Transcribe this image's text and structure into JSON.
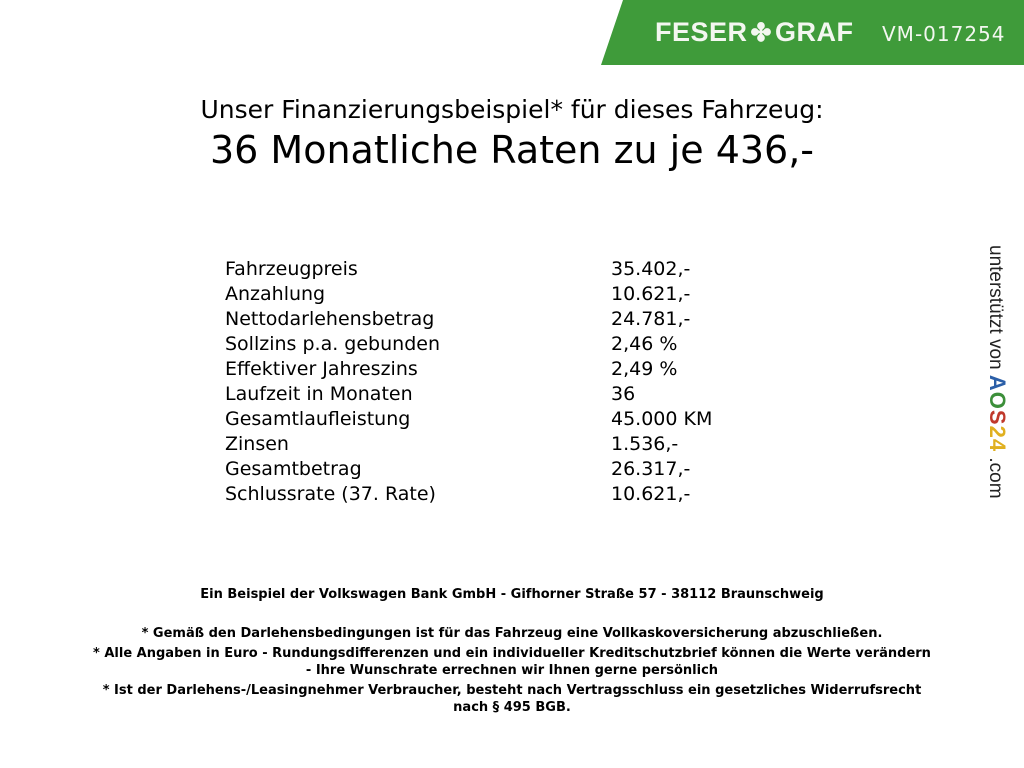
{
  "header": {
    "brand_left": "FESER",
    "brand_right": "GRAF",
    "vehicle_id": "VM-017254",
    "brand_color": "#3f9b3a"
  },
  "title": {
    "line1": "Unser Finanzierungsbeispiel* für dieses Fahrzeug:",
    "line2": "36 Monatliche Raten zu je 436,-"
  },
  "details": [
    {
      "label": "Fahrzeugpreis",
      "value": "35.402,-"
    },
    {
      "label": "Anzahlung",
      "value": "10.621,-"
    },
    {
      "label": "Nettodarlehensbetrag",
      "value": "24.781,-"
    },
    {
      "label": "Sollzins p.a. gebunden",
      "value": "2,46 %"
    },
    {
      "label": "Effektiver Jahreszins",
      "value": "2,49 %"
    },
    {
      "label": "Laufzeit in Monaten",
      "value": "36"
    },
    {
      "label": "Gesamtlaufleistung",
      "value": "45.000 KM"
    },
    {
      "label": "Zinsen",
      "value": "1.536,-"
    },
    {
      "label": "Gesamtbetrag",
      "value": "26.317,-"
    },
    {
      "label": "Schlussrate (37. Rate)",
      "value": "10.621,-"
    }
  ],
  "footer": {
    "bank": "Ein Beispiel der Volkswagen Bank GmbH - Gifhorner Straße 57 - 38112 Braunschweig",
    "note1": "* Gemäß den Darlehensbedingungen ist für das Fahrzeug eine Vollkaskoversicherung abzuschließen.",
    "note2a": "* Alle Angaben in Euro - Rundungsdifferenzen und ein individueller Kreditschutzbrief können die Werte verändern",
    "note2b": "- Ihre Wunschrate errechnen wir Ihnen gerne persönlich",
    "note3a": "* Ist der Darlehens-/Leasingnehmer Verbraucher, besteht nach Vertragsschluss ein gesetzliches Widerrufsrecht",
    "note3b": "nach § 495 BGB."
  },
  "side": {
    "prefix": "unterstützt von",
    "logo": [
      "A",
      "O",
      "S",
      "2",
      "4"
    ],
    "suffix": ".com",
    "logo_colors": [
      "#2b5fa8",
      "#3c8f3a",
      "#c0392b",
      "#e0b020",
      "#e0b020"
    ]
  }
}
